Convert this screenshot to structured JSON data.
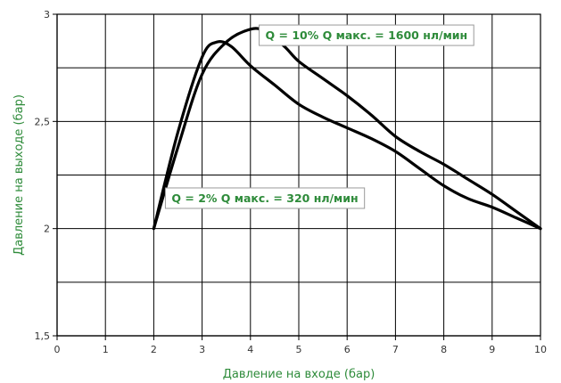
{
  "chart_data": {
    "type": "line",
    "title": "",
    "xlabel": "Давление на входе (бар)",
    "ylabel": "Давление на выходе (бар)",
    "xlim": [
      0,
      10
    ],
    "ylim": [
      1.5,
      3
    ],
    "x_ticks": [
      0,
      1,
      2,
      3,
      4,
      5,
      6,
      7,
      8,
      9,
      10
    ],
    "x_tick_labels": [
      "0",
      "1",
      "2",
      "3",
      "4",
      "5",
      "6",
      "7",
      "8",
      "9",
      "10"
    ],
    "y_ticks": [
      1.5,
      2,
      2.5,
      3
    ],
    "y_tick_labels": [
      "1,5",
      "2",
      "2,5",
      "3"
    ],
    "grid_x": [
      0,
      1,
      2,
      3,
      4,
      5,
      6,
      7,
      8,
      9,
      10
    ],
    "grid_y": [
      1.5,
      1.75,
      2,
      2.25,
      2.5,
      2.75,
      3
    ],
    "grid": true,
    "legend": "none",
    "colors": {
      "line": "#000000",
      "text": "#2e8b3a",
      "grid": "#000000"
    },
    "series": [
      {
        "x": [
          2,
          2.5,
          3,
          3.3,
          3.6,
          4,
          4.5,
          5,
          5.5,
          6,
          6.5,
          7,
          7.5,
          8,
          8.5,
          9,
          9.5,
          10
        ],
        "y": [
          2.0,
          2.45,
          2.8,
          2.87,
          2.85,
          2.76,
          2.67,
          2.58,
          2.52,
          2.47,
          2.42,
          2.36,
          2.28,
          2.2,
          2.14,
          2.1,
          2.05,
          2.0
        ]
      },
      {
        "x": [
          2,
          2.5,
          3,
          3.5,
          4,
          4.3,
          4.7,
          5,
          5.5,
          6,
          6.5,
          7,
          7.5,
          8,
          8.5,
          9,
          9.5,
          10
        ],
        "y": [
          2.0,
          2.38,
          2.72,
          2.87,
          2.93,
          2.92,
          2.85,
          2.78,
          2.7,
          2.62,
          2.53,
          2.43,
          2.36,
          2.3,
          2.23,
          2.16,
          2.08,
          2.0
        ]
      }
    ],
    "annotations": [
      {
        "text": "Q = 10% Q макс. = 1600 нл/мин",
        "x": 6.4,
        "y": 2.9
      },
      {
        "text": "Q = 2% Q макс. = 320 нл/мин",
        "x": 4.3,
        "y": 2.14
      }
    ]
  }
}
